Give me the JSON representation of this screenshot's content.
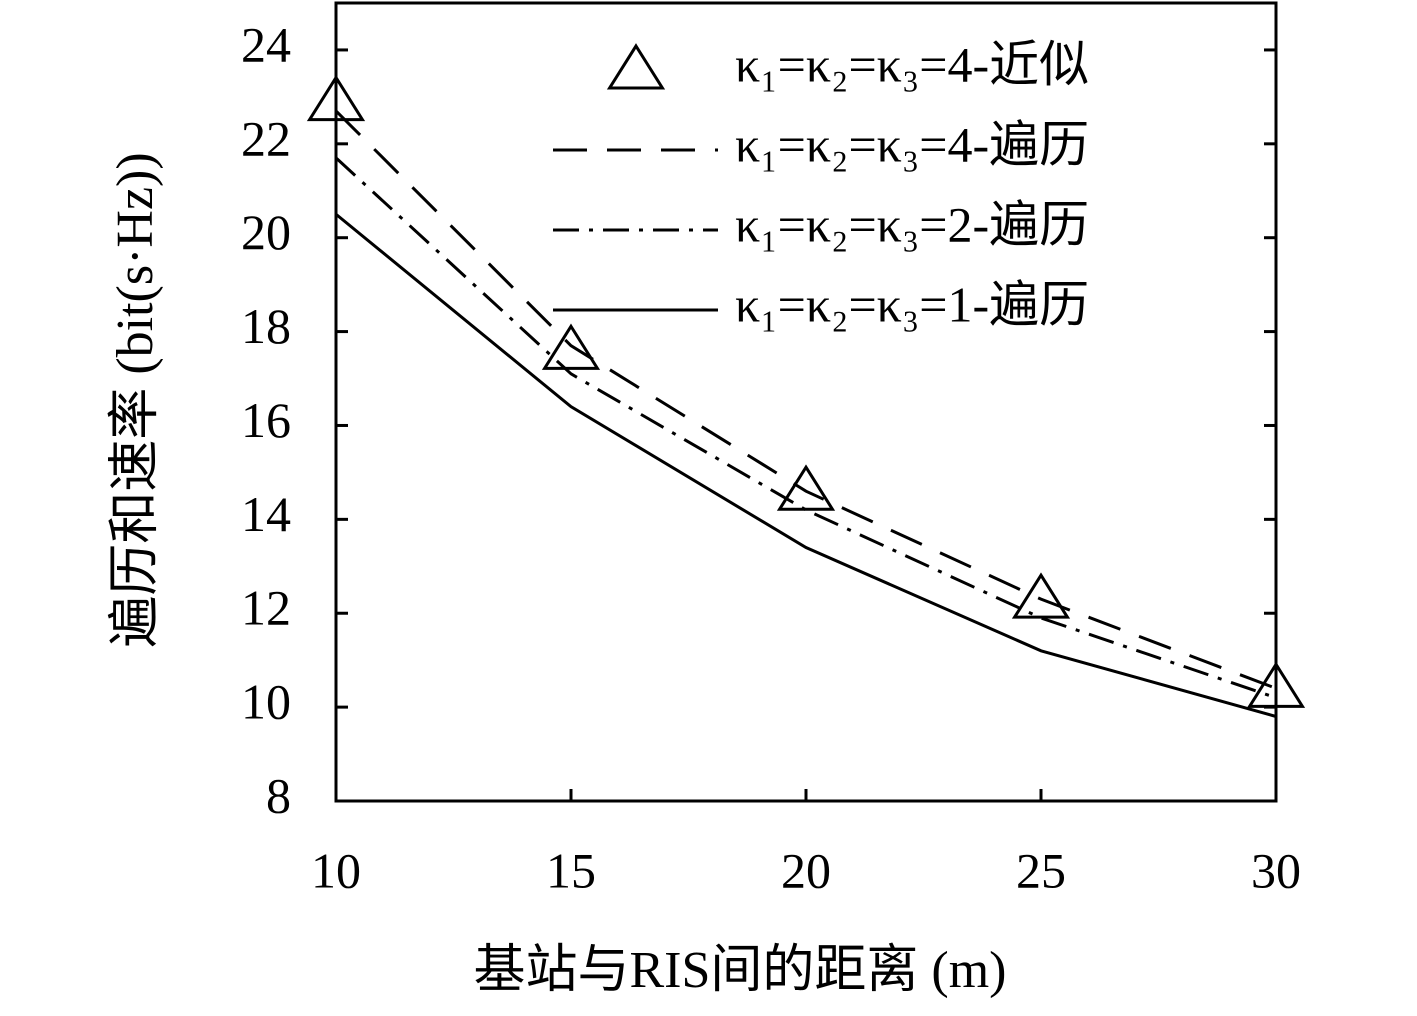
{
  "chart_data": {
    "type": "line",
    "x_label": "基站与RIS间的距离 (m)",
    "y_label": "遍历和速率 (bit(s·Hz))",
    "x": [
      10,
      15,
      20,
      25,
      30
    ],
    "series": [
      {
        "name": "κ₁=κ₂=κ₃=4-近似",
        "color": "#000000",
        "linestyle": "none",
        "marker": "triangle",
        "values": [
          22.9,
          17.6,
          14.6,
          12.3,
          10.4
        ]
      },
      {
        "name": "κ₁=κ₂=κ₃=4-遍历",
        "color": "#000000",
        "linestyle": "dashed",
        "values": [
          22.7,
          17.7,
          14.6,
          12.3,
          10.4
        ]
      },
      {
        "name": "κ₁=κ₂=κ₃=2-遍历",
        "color": "#000000",
        "linestyle": "dashdot",
        "values": [
          21.7,
          17.1,
          14.2,
          11.9,
          10.2
        ]
      },
      {
        "name": "κ₁=κ₂=κ₃=1-遍历",
        "color": "#000000",
        "linestyle": "solid",
        "values": [
          20.5,
          16.4,
          13.4,
          11.2,
          9.8
        ]
      }
    ],
    "xlim": [
      10,
      30
    ],
    "xticks": [
      10,
      15,
      20,
      25,
      30
    ],
    "ylim": [
      8,
      25
    ],
    "yticks": [
      8,
      10,
      12,
      14,
      16,
      18,
      20,
      22,
      24
    ],
    "grid": false,
    "legend": "upper right"
  }
}
